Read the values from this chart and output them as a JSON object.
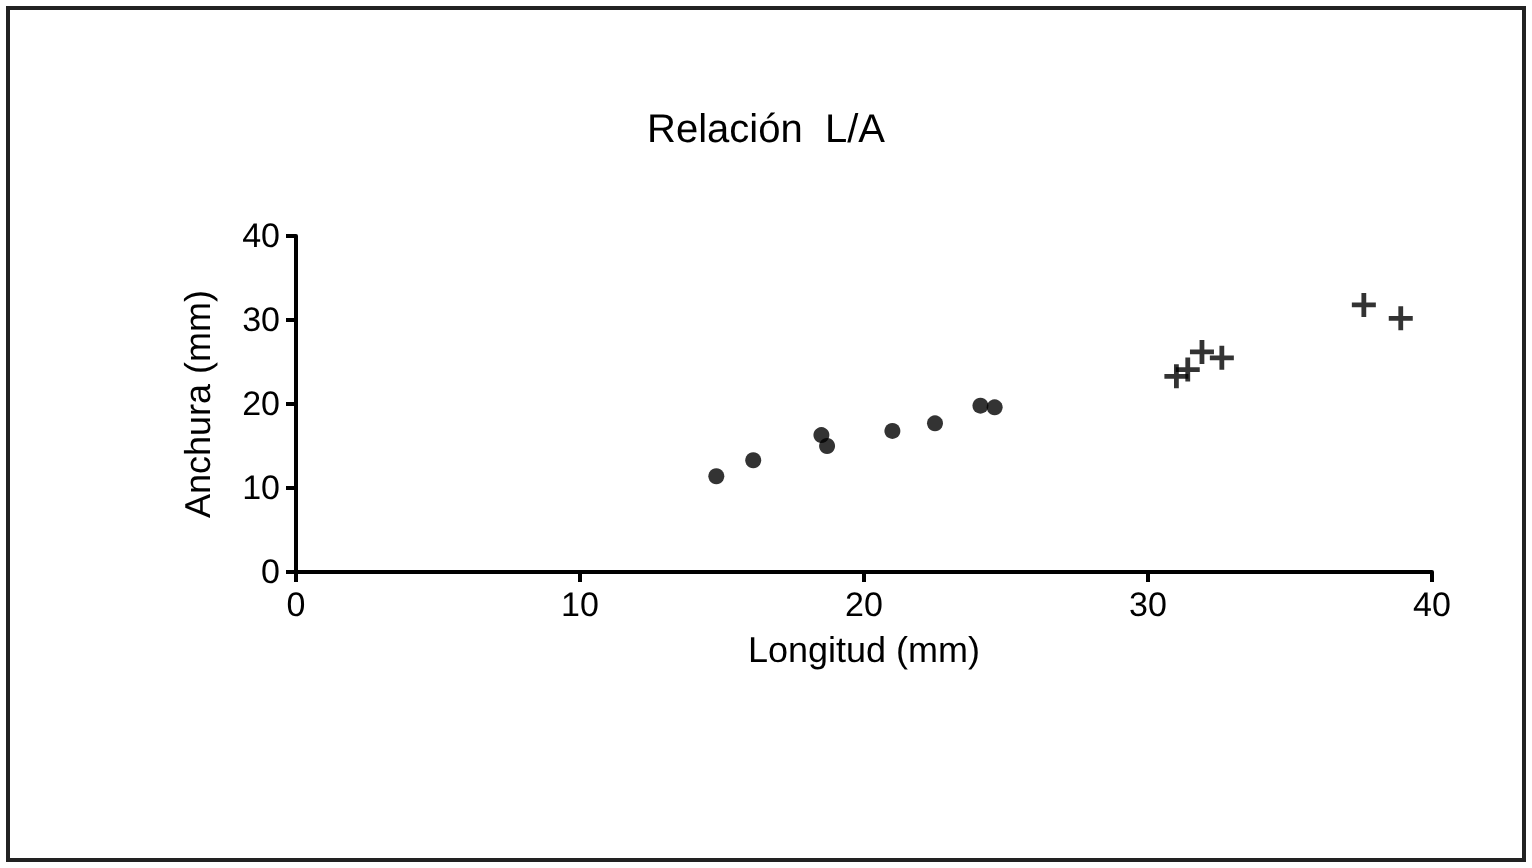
{
  "chart_data": {
    "type": "scatter",
    "title": "Relación  L/A",
    "xlabel": "Longitud (mm)",
    "ylabel": "Anchura (mm)",
    "series": [
      {
        "color": "#000000",
        "marker": "circle",
        "x": [
          14.8,
          16.1,
          18.5,
          18.7,
          21.0,
          22.5,
          24.1,
          24.6
        ],
        "values": [
          11.4,
          13.3,
          16.3,
          15.0,
          16.8,
          17.7,
          19.8,
          19.6
        ]
      },
      {
        "color": "#000000",
        "marker": "cross",
        "x": [
          31.0,
          31.4,
          31.9,
          32.6,
          37.6,
          38.9
        ],
        "values": [
          23.3,
          24.1,
          26.2,
          25.5,
          31.8,
          30.2
        ]
      }
    ],
    "xlim": [
      0,
      40
    ],
    "xticks": [
      0,
      10,
      20,
      30,
      40
    ],
    "ylim": [
      0,
      40
    ],
    "yticks": [
      0,
      10,
      20,
      30,
      40
    ],
    "grid": false
  }
}
